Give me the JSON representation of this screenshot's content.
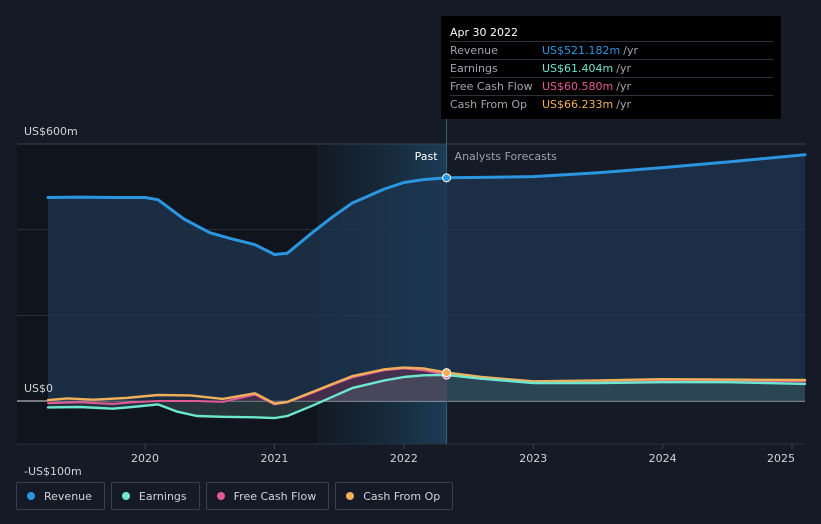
{
  "tooltip": {
    "date": "Apr 30 2022",
    "rows": [
      {
        "name": "Revenue",
        "value": "US$521.182m",
        "unit": "/yr",
        "color": "#2b95e0"
      },
      {
        "name": "Earnings",
        "value": "US$61.404m",
        "unit": "/yr",
        "color": "#6ee7cf"
      },
      {
        "name": "Free Cash Flow",
        "value": "US$60.580m",
        "unit": "/yr",
        "color": "#e05a98"
      },
      {
        "name": "Cash From Op",
        "value": "US$66.233m",
        "unit": "/yr",
        "color": "#f0b05a"
      }
    ]
  },
  "labels": {
    "past": "Past",
    "forecast": "Analysts Forecasts"
  },
  "legend": [
    {
      "label": "Revenue",
      "color": "#2b95e0"
    },
    {
      "label": "Earnings",
      "color": "#6ee7cf"
    },
    {
      "label": "Free Cash Flow",
      "color": "#e05a98"
    },
    {
      "label": "Cash From Op",
      "color": "#f0b05a"
    }
  ],
  "chart_data": {
    "type": "area",
    "y_tick_labels": [
      "US$600m",
      "US$0",
      "-US$100m"
    ],
    "ylim": [
      -100,
      600
    ],
    "x_tick_labels": [
      "2020",
      "2021",
      "2022",
      "2023",
      "2024",
      "2025"
    ],
    "xlim": [
      2019.25,
      2025.1
    ],
    "past_end": 2022.33,
    "highlight_start": 2021.33,
    "series": [
      {
        "name": "Revenue",
        "color": "#2b95e0",
        "points": [
          [
            2019.25,
            475
          ],
          [
            2019.5,
            476
          ],
          [
            2019.75,
            475
          ],
          [
            2020.0,
            475
          ],
          [
            2020.1,
            470
          ],
          [
            2020.3,
            425
          ],
          [
            2020.5,
            393
          ],
          [
            2020.65,
            380
          ],
          [
            2020.85,
            365
          ],
          [
            2021.0,
            342
          ],
          [
            2021.1,
            345
          ],
          [
            2021.3,
            395
          ],
          [
            2021.45,
            430
          ],
          [
            2021.6,
            462
          ],
          [
            2021.85,
            495
          ],
          [
            2022.0,
            510
          ],
          [
            2022.15,
            517
          ],
          [
            2022.33,
            521
          ],
          [
            2022.6,
            522
          ],
          [
            2023.0,
            524
          ],
          [
            2023.5,
            533
          ],
          [
            2024.0,
            545
          ],
          [
            2024.5,
            558
          ],
          [
            2025.1,
            575
          ]
        ]
      },
      {
        "name": "Earnings",
        "color": "#6ee7cf",
        "points": [
          [
            2019.25,
            -15
          ],
          [
            2019.5,
            -14
          ],
          [
            2019.75,
            -18
          ],
          [
            2019.9,
            -14
          ],
          [
            2020.1,
            -8
          ],
          [
            2020.25,
            -25
          ],
          [
            2020.4,
            -35
          ],
          [
            2020.6,
            -37
          ],
          [
            2020.85,
            -38
          ],
          [
            2021.0,
            -40
          ],
          [
            2021.1,
            -35
          ],
          [
            2021.3,
            -10
          ],
          [
            2021.45,
            10
          ],
          [
            2021.6,
            30
          ],
          [
            2021.85,
            48
          ],
          [
            2022.0,
            56
          ],
          [
            2022.15,
            60
          ],
          [
            2022.33,
            61
          ],
          [
            2022.6,
            52
          ],
          [
            2023.0,
            42
          ],
          [
            2023.5,
            42
          ],
          [
            2024.0,
            44
          ],
          [
            2024.5,
            44
          ],
          [
            2025.1,
            40
          ]
        ]
      },
      {
        "name": "Free Cash Flow",
        "color": "#e05a98",
        "points": [
          [
            2019.25,
            -5
          ],
          [
            2019.5,
            -3
          ],
          [
            2019.75,
            -7
          ],
          [
            2019.9,
            -3
          ],
          [
            2020.1,
            0
          ],
          [
            2020.4,
            0
          ],
          [
            2020.6,
            -2
          ],
          [
            2020.85,
            15
          ],
          [
            2021.0,
            -8
          ],
          [
            2021.1,
            -3
          ],
          [
            2021.3,
            20
          ],
          [
            2021.45,
            38
          ],
          [
            2021.6,
            55
          ],
          [
            2021.85,
            72
          ],
          [
            2022.0,
            76
          ],
          [
            2022.15,
            72
          ],
          [
            2022.33,
            60.6
          ],
          [
            2022.6,
            52
          ],
          [
            2023.0,
            43
          ],
          [
            2023.5,
            45
          ],
          [
            2024.0,
            48
          ],
          [
            2024.5,
            47
          ],
          [
            2025.1,
            46
          ]
        ]
      },
      {
        "name": "Cash From Op",
        "color": "#f0b05a",
        "points": [
          [
            2019.25,
            2
          ],
          [
            2019.4,
            6
          ],
          [
            2019.6,
            3
          ],
          [
            2019.85,
            7
          ],
          [
            2020.1,
            14
          ],
          [
            2020.35,
            13
          ],
          [
            2020.6,
            5
          ],
          [
            2020.85,
            18
          ],
          [
            2021.0,
            -6
          ],
          [
            2021.1,
            -2
          ],
          [
            2021.3,
            22
          ],
          [
            2021.45,
            40
          ],
          [
            2021.6,
            58
          ],
          [
            2021.85,
            74
          ],
          [
            2022.0,
            78
          ],
          [
            2022.15,
            76
          ],
          [
            2022.33,
            66.2
          ],
          [
            2022.6,
            56
          ],
          [
            2023.0,
            46
          ],
          [
            2023.5,
            48
          ],
          [
            2024.0,
            51
          ],
          [
            2024.5,
            50
          ],
          [
            2025.1,
            49
          ]
        ]
      }
    ]
  }
}
